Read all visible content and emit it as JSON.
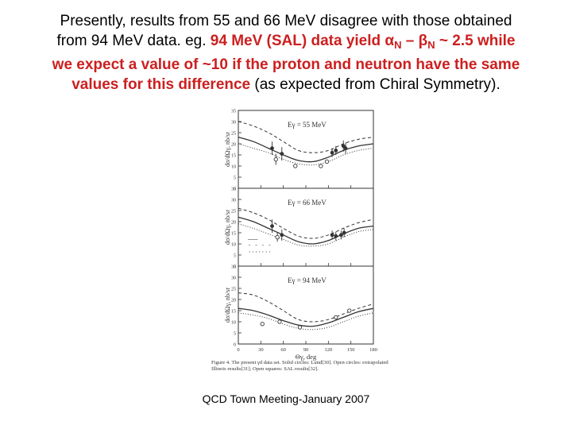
{
  "headline": {
    "line1": "Presently, results from 55 and 66 MeV disagree with those obtained",
    "line2_plain": "from 94 MeV data.  eg. ",
    "line2_red": "94 MeV (SAL) data yield ",
    "alpha": "α",
    "sub_n": "N",
    "dash": " – ",
    "beta": "β",
    "line2_red_end": " ~ 2.5 while",
    "line3": "we expect a value of ~10 if the proton and neutron have the same",
    "line4_red": "values for this difference",
    "line4_plain": " (as expected from Chiral Symmetry)."
  },
  "footer": "QCD Town Meeting-January 2007",
  "colors": {
    "accent_red": "#cc1f1f",
    "text": "#000000",
    "figure_ink": "#333333"
  },
  "chart_data": {
    "type": "scatter",
    "shared_x": {
      "label": "Θγ, deg",
      "range": [
        0,
        180
      ],
      "ticks": [
        "0",
        "30",
        "60",
        "90",
        "120",
        "150",
        "180"
      ]
    },
    "ylabel": "dσ/dΩγ, nb/sr",
    "yrange": [
      0,
      35
    ],
    "yticks": [
      "0",
      "5",
      "10",
      "15",
      "20",
      "25",
      "30",
      "35"
    ],
    "caption": "Figure 4.   The present γd data set.  Solid circles: Lund[30].  Open circles: extrapolated Illinois results[31]; Open squares: SAL results[32].",
    "legend": [
      "———",
      "- - - -",
      "·······"
    ],
    "panels": [
      {
        "label": "Eγ = 55 MeV",
        "curves": [
          {
            "name": "solid",
            "x": [
              0,
              20,
              40,
              60,
              80,
              100,
              120,
              140,
              160,
              180
            ],
            "y": [
              23,
              21,
              18,
              15,
              12.5,
              12,
              14,
              17,
              19,
              20
            ]
          },
          {
            "name": "dashed",
            "x": [
              0,
              20,
              40,
              60,
              80,
              100,
              120,
              140,
              160,
              180
            ],
            "y": [
              30,
              28,
              25,
              21,
              17,
              16,
              17,
              20,
              22,
              23
            ]
          },
          {
            "name": "dotted",
            "x": [
              0,
              20,
              40,
              60,
              80,
              100,
              120,
              140,
              160,
              180
            ],
            "y": [
              20,
              18,
              16,
              13,
              11,
              10.5,
              12,
              15,
              17,
              18
            ]
          }
        ],
        "points": [
          {
            "x": 45,
            "y": 18,
            "err": 3,
            "kind": "solid"
          },
          {
            "x": 58,
            "y": 15.5,
            "err": 3,
            "kind": "solid"
          },
          {
            "x": 125,
            "y": 16,
            "err": 2,
            "kind": "solid"
          },
          {
            "x": 130,
            "y": 17,
            "err": 2,
            "kind": "solid"
          },
          {
            "x": 140,
            "y": 19,
            "err": 2.5,
            "kind": "solid"
          },
          {
            "x": 143,
            "y": 18,
            "err": 2.5,
            "kind": "solid"
          },
          {
            "x": 50,
            "y": 13,
            "err": 2.5,
            "kind": "open"
          },
          {
            "x": 76,
            "y": 10,
            "err": 0,
            "kind": "open"
          },
          {
            "x": 110,
            "y": 10,
            "err": 0,
            "kind": "open"
          },
          {
            "x": 118,
            "y": 12,
            "err": 0,
            "kind": "open"
          }
        ]
      },
      {
        "label": "Eγ = 66 MeV",
        "curves": [
          {
            "name": "solid",
            "x": [
              0,
              20,
              40,
              60,
              80,
              100,
              120,
              140,
              160,
              180
            ],
            "y": [
              22,
              20,
              17,
              14,
              11,
              10,
              11.5,
              14.5,
              17,
              18
            ]
          },
          {
            "name": "dashed",
            "x": [
              0,
              20,
              40,
              60,
              80,
              100,
              120,
              140,
              160,
              180
            ],
            "y": [
              26,
              24,
              21,
              17,
              13.5,
              12.5,
              14,
              17,
              19.5,
              21
            ]
          },
          {
            "name": "dotted",
            "x": [
              0,
              20,
              40,
              60,
              80,
              100,
              120,
              140,
              160,
              180
            ],
            "y": [
              19,
              17,
              14.5,
              12,
              9.5,
              9,
              10,
              13,
              15.5,
              16.5
            ]
          }
        ],
        "points": [
          {
            "x": 45,
            "y": 18,
            "err": 3,
            "kind": "solid"
          },
          {
            "x": 58,
            "y": 14,
            "err": 2.5,
            "kind": "solid"
          },
          {
            "x": 125,
            "y": 14,
            "err": 2,
            "kind": "solid"
          },
          {
            "x": 130,
            "y": 13.5,
            "err": 2,
            "kind": "solid"
          },
          {
            "x": 137,
            "y": 14,
            "err": 2,
            "kind": "solid"
          },
          {
            "x": 141,
            "y": 15,
            "err": 2,
            "kind": "solid"
          },
          {
            "x": 52,
            "y": 13,
            "err": 2,
            "kind": "open"
          }
        ]
      },
      {
        "label": "Eγ = 94 MeV",
        "curves": [
          {
            "name": "solid",
            "x": [
              0,
              20,
              40,
              60,
              80,
              100,
              120,
              140,
              160,
              180
            ],
            "y": [
              16,
              15,
              13,
              10.5,
              8.5,
              8,
              9.5,
              12,
              14.5,
              16
            ]
          },
          {
            "name": "dashed",
            "x": [
              0,
              20,
              40,
              60,
              80,
              100,
              120,
              140,
              160,
              180
            ],
            "y": [
              23,
              22,
              19,
              15,
              11,
              10,
              11,
              13.5,
              16,
              18
            ]
          },
          {
            "name": "dotted",
            "x": [
              0,
              20,
              40,
              60,
              80,
              100,
              120,
              140,
              160,
              180
            ],
            "y": [
              14,
              13,
              11.5,
              9,
              7,
              6.5,
              7.5,
              10,
              12.5,
              14
            ]
          }
        ],
        "points": [
          {
            "x": 32,
            "y": 9,
            "err": 0,
            "kind": "open"
          },
          {
            "x": 55,
            "y": 10,
            "err": 0,
            "kind": "open"
          },
          {
            "x": 82,
            "y": 7.5,
            "err": 0,
            "kind": "open"
          },
          {
            "x": 130,
            "y": 12,
            "err": 0,
            "kind": "open"
          },
          {
            "x": 148,
            "y": 15,
            "err": 0,
            "kind": "open"
          }
        ]
      }
    ]
  }
}
